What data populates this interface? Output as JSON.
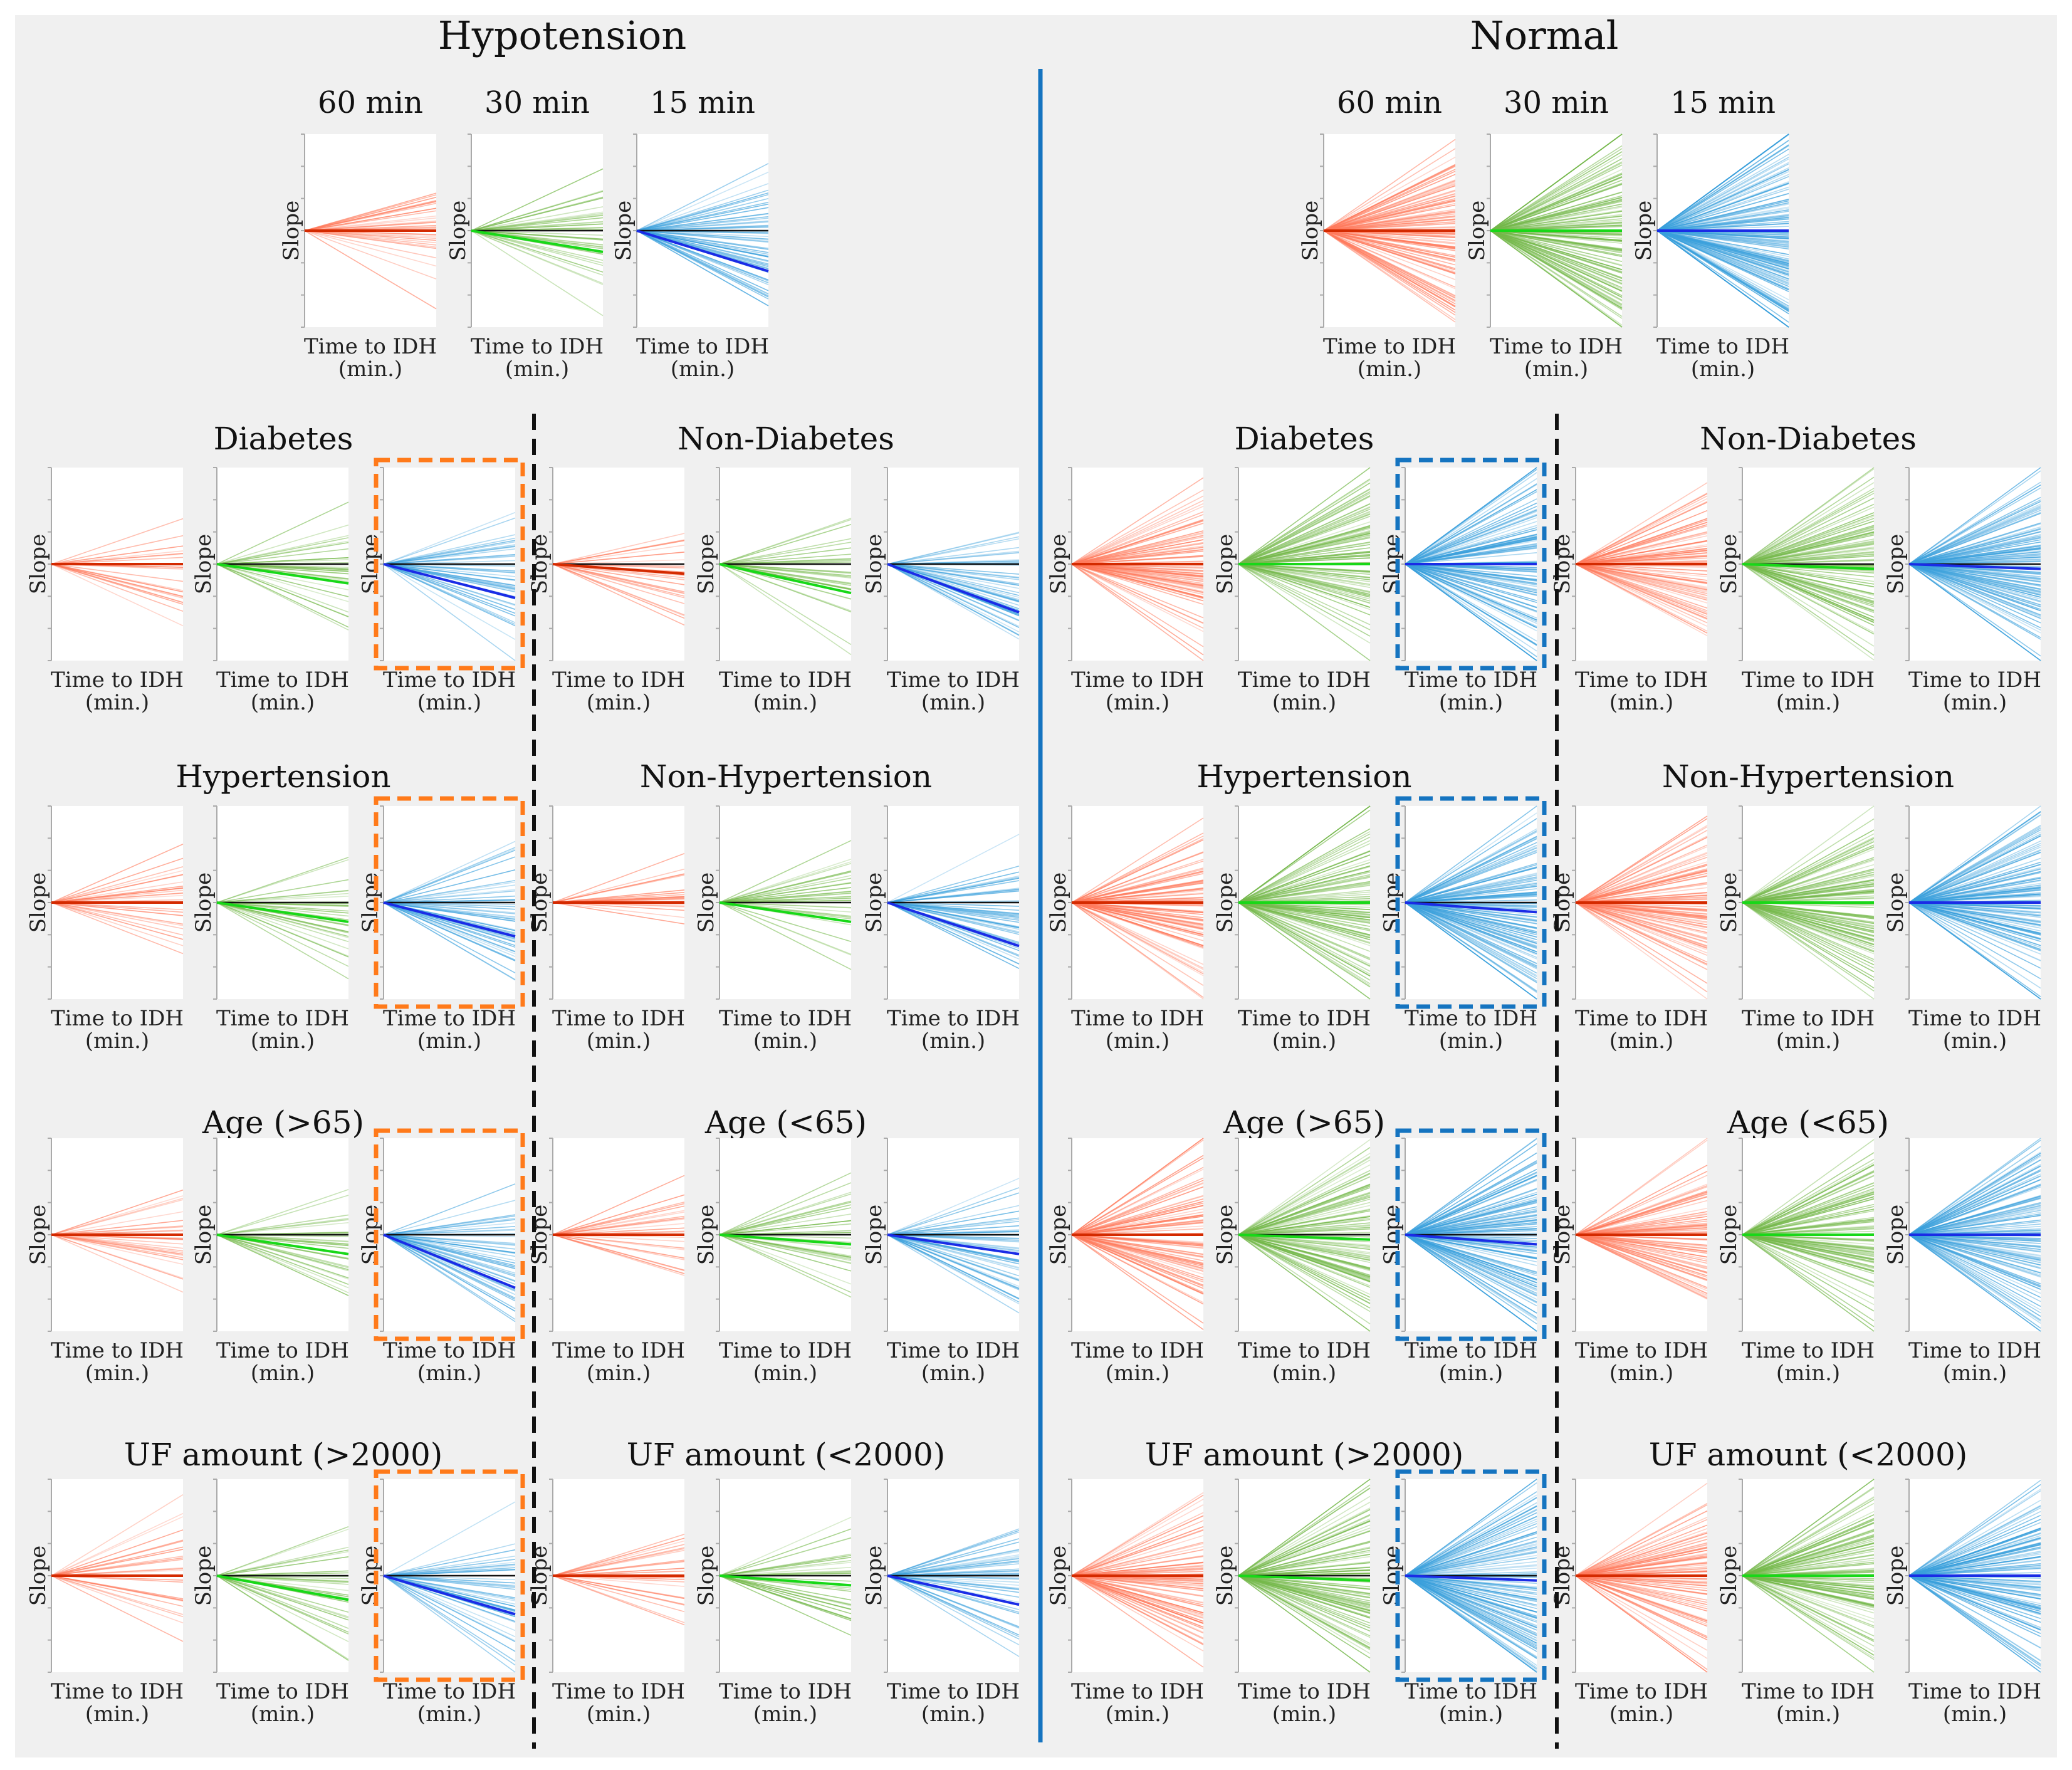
{
  "chart_data": {
    "type": "line",
    "description_text": {
      "x_axis_label_line1": "Time to IDH",
      "x_axis_label_line2": "(min.)",
      "y_axis_label": "Slope"
    },
    "sections": [
      {
        "id": "hypotension",
        "title": "Hypotension",
        "windows": [
          "60 min",
          "30 min",
          "15 min"
        ],
        "overall_mean_slopes": [
          0.0,
          -0.22,
          -0.42
        ],
        "subgroups": [
          {
            "label": "Diabetes",
            "mean_slopes": [
              0.0,
              -0.2,
              -0.35
            ],
            "highlight_window": "15 min"
          },
          {
            "label": "Non-Diabetes",
            "mean_slopes": [
              -0.1,
              -0.3,
              -0.5
            ],
            "highlight_window": ""
          },
          {
            "label": "Hypertension",
            "mean_slopes": [
              0.0,
              -0.2,
              -0.35
            ],
            "highlight_window": "15 min"
          },
          {
            "label": "Non-Hypertension",
            "mean_slopes": [
              0.0,
              -0.2,
              -0.45
            ],
            "highlight_window": ""
          },
          {
            "label": "Age (>65)",
            "mean_slopes": [
              0.0,
              -0.2,
              -0.55
            ],
            "highlight_window": "15 min"
          },
          {
            "label": "Age (<65)",
            "mean_slopes": [
              0.0,
              -0.1,
              -0.2
            ],
            "highlight_window": ""
          },
          {
            "label": "UF amount (>2000)",
            "mean_slopes": [
              0.0,
              -0.25,
              -0.4
            ],
            "highlight_window": "15 min"
          },
          {
            "label": "UF amount (<2000)",
            "mean_slopes": [
              0.0,
              -0.1,
              -0.3
            ],
            "highlight_window": ""
          }
        ]
      },
      {
        "id": "normal",
        "title": "Normal",
        "windows": [
          "60 min",
          "30 min",
          "15 min"
        ],
        "overall_mean_slopes": [
          0.0,
          0.0,
          0.0
        ],
        "subgroups": [
          {
            "label": "Diabetes",
            "mean_slopes": [
              0.0,
              0.0,
              0.0
            ],
            "highlight_window": "15 min"
          },
          {
            "label": "Non-Diabetes",
            "mean_slopes": [
              0.0,
              -0.05,
              -0.05
            ],
            "highlight_window": ""
          },
          {
            "label": "Hypertension",
            "mean_slopes": [
              0.0,
              0.0,
              -0.1
            ],
            "highlight_window": "15 min"
          },
          {
            "label": "Non-Hypertension",
            "mean_slopes": [
              0.0,
              0.0,
              0.0
            ],
            "highlight_window": ""
          },
          {
            "label": "Age (>65)",
            "mean_slopes": [
              0.0,
              -0.05,
              -0.1
            ],
            "highlight_window": "15 min"
          },
          {
            "label": "Age (<65)",
            "mean_slopes": [
              0.0,
              0.0,
              0.0
            ],
            "highlight_window": ""
          },
          {
            "label": "UF amount (>2000)",
            "mean_slopes": [
              0.0,
              -0.05,
              -0.05
            ],
            "highlight_window": "15 min"
          },
          {
            "label": "UF amount (<2000)",
            "mean_slopes": [
              0.0,
              0.0,
              0.0
            ],
            "highlight_window": ""
          }
        ]
      }
    ],
    "colors": {
      "60 min": {
        "line": "#ff7a5c",
        "mean": "#d42a00"
      },
      "30 min": {
        "line": "#74b84a",
        "mean": "#18d818"
      },
      "15 min": {
        "line": "#3aa0dc",
        "mean": "#1a2ce6"
      },
      "highlight_hypotension": "#ff7a1a",
      "highlight_normal": "#1574c0",
      "divider": "#1574c0",
      "background": "#f0f0f0"
    }
  }
}
